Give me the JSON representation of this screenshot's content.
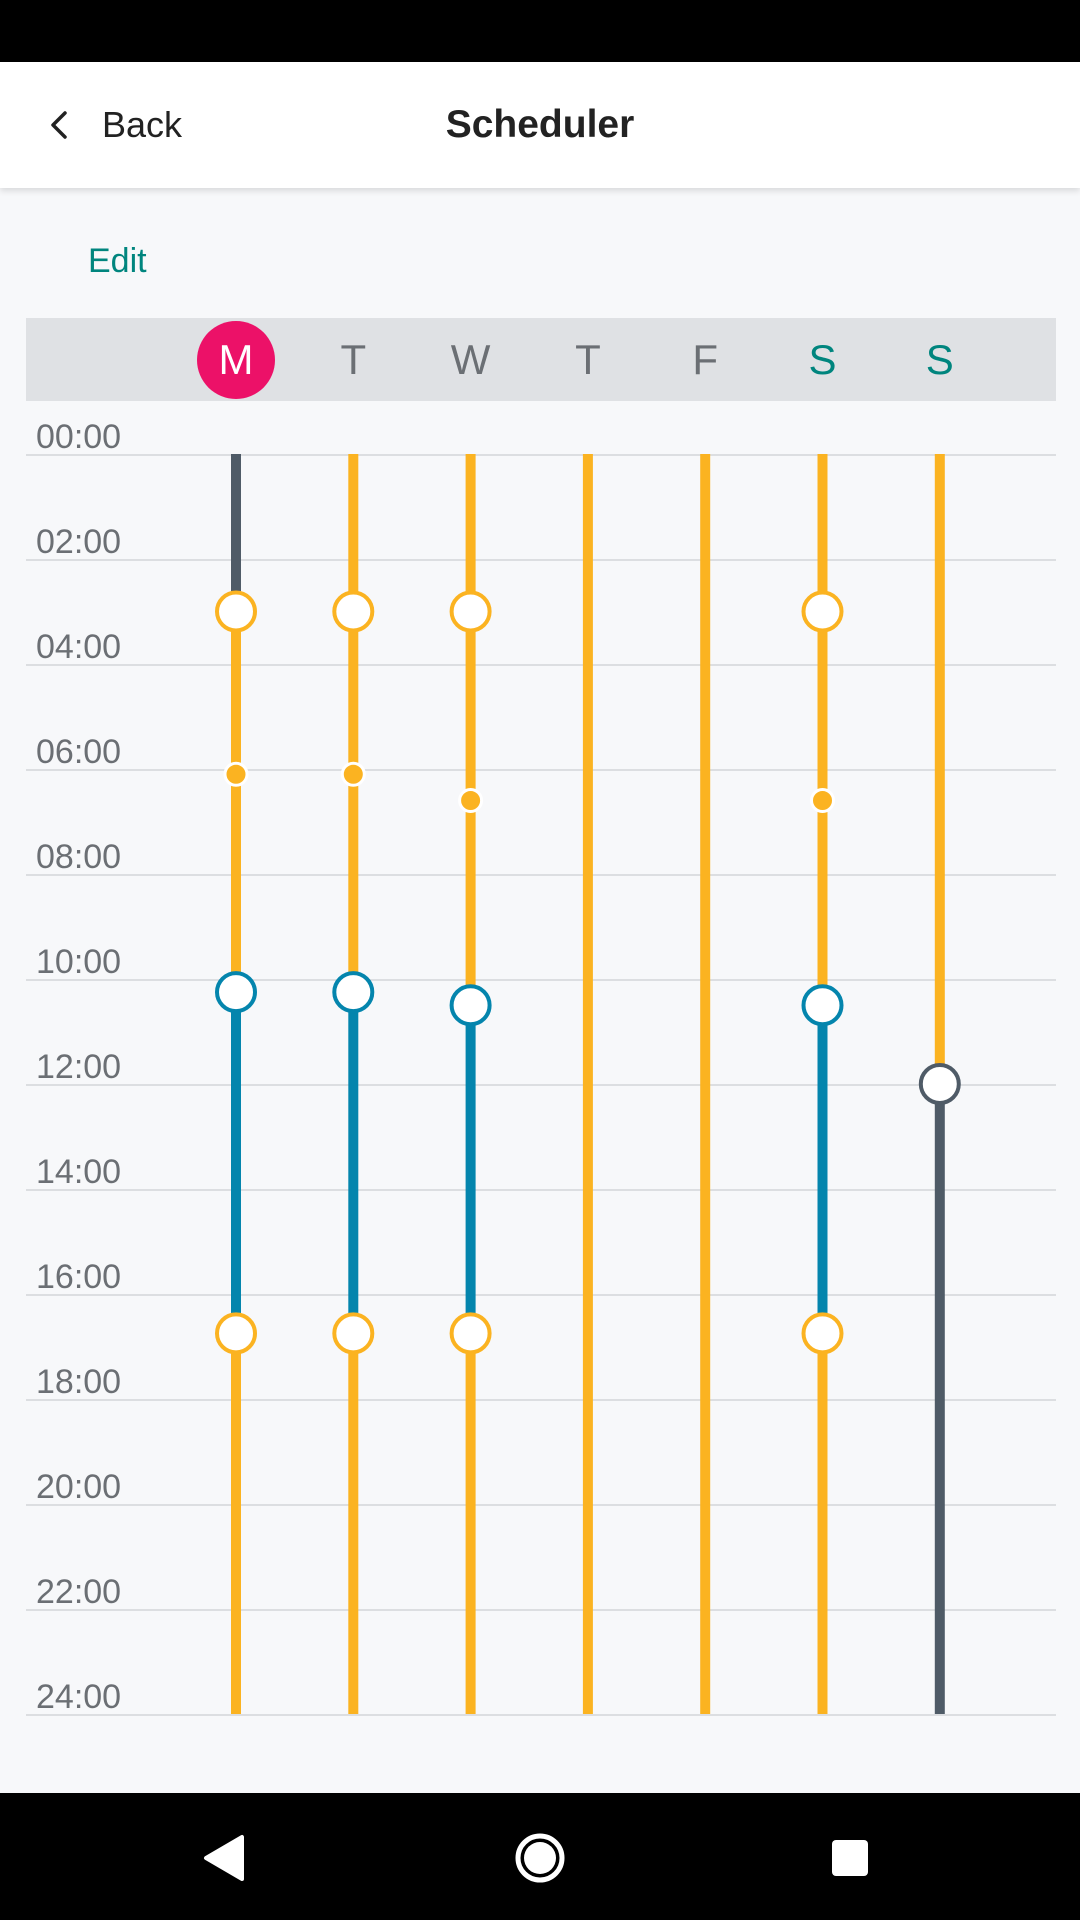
{
  "header": {
    "back_label": "Back",
    "title": "Scheduler"
  },
  "edit_label": "Edit",
  "days": [
    {
      "label": "M",
      "current": true,
      "weekend": false
    },
    {
      "label": "T",
      "current": false,
      "weekend": false
    },
    {
      "label": "W",
      "current": false,
      "weekend": false
    },
    {
      "label": "T",
      "current": false,
      "weekend": false
    },
    {
      "label": "F",
      "current": false,
      "weekend": false
    },
    {
      "label": "S",
      "current": false,
      "weekend": true
    },
    {
      "label": "S",
      "current": false,
      "weekend": true
    }
  ],
  "time_labels": [
    "00:00",
    "02:00",
    "04:00",
    "06:00",
    "08:00",
    "10:00",
    "12:00",
    "14:00",
    "16:00",
    "18:00",
    "20:00",
    "22:00",
    "24:00"
  ],
  "colors": {
    "comfort": "#fbb321",
    "eco": "#0485ad",
    "off": "#4f5b67",
    "accent": "#00857e",
    "today": "#ec1168"
  },
  "schedule": [
    {
      "day": "M",
      "segments": [
        {
          "from": 0,
          "to": 3,
          "mode": "off"
        },
        {
          "from": 3,
          "to": 10.25,
          "mode": "comfort"
        },
        {
          "from": 10.25,
          "to": 16.75,
          "mode": "eco"
        },
        {
          "from": 16.75,
          "to": 24,
          "mode": "comfort"
        }
      ],
      "markers": [
        {
          "at": 3,
          "type": "switch",
          "mode": "comfort"
        },
        {
          "at": 6.1,
          "type": "point",
          "mode": "comfort"
        },
        {
          "at": 10.25,
          "type": "switch",
          "mode": "eco"
        },
        {
          "at": 16.75,
          "type": "switch",
          "mode": "comfort"
        }
      ]
    },
    {
      "day": "T",
      "segments": [
        {
          "from": 0,
          "to": 10.25,
          "mode": "comfort"
        },
        {
          "from": 10.25,
          "to": 16.75,
          "mode": "eco"
        },
        {
          "from": 16.75,
          "to": 24,
          "mode": "comfort"
        }
      ],
      "markers": [
        {
          "at": 3,
          "type": "switch",
          "mode": "comfort"
        },
        {
          "at": 6.1,
          "type": "point",
          "mode": "comfort"
        },
        {
          "at": 10.25,
          "type": "switch",
          "mode": "eco"
        },
        {
          "at": 16.75,
          "type": "switch",
          "mode": "comfort"
        }
      ]
    },
    {
      "day": "W",
      "segments": [
        {
          "from": 0,
          "to": 10.5,
          "mode": "comfort"
        },
        {
          "from": 10.5,
          "to": 16.75,
          "mode": "eco"
        },
        {
          "from": 16.75,
          "to": 24,
          "mode": "comfort"
        }
      ],
      "markers": [
        {
          "at": 3,
          "type": "switch",
          "mode": "comfort"
        },
        {
          "at": 6.6,
          "type": "point",
          "mode": "comfort"
        },
        {
          "at": 10.5,
          "type": "switch",
          "mode": "eco"
        },
        {
          "at": 16.75,
          "type": "switch",
          "mode": "comfort"
        }
      ]
    },
    {
      "day": "T",
      "segments": [
        {
          "from": 0,
          "to": 24,
          "mode": "comfort"
        }
      ],
      "markers": []
    },
    {
      "day": "F",
      "segments": [
        {
          "from": 0,
          "to": 24,
          "mode": "comfort"
        }
      ],
      "markers": []
    },
    {
      "day": "S",
      "segments": [
        {
          "from": 0,
          "to": 10.5,
          "mode": "comfort"
        },
        {
          "from": 10.5,
          "to": 16.75,
          "mode": "eco"
        },
        {
          "from": 16.75,
          "to": 24,
          "mode": "comfort"
        }
      ],
      "markers": [
        {
          "at": 3,
          "type": "switch",
          "mode": "comfort"
        },
        {
          "at": 6.6,
          "type": "point",
          "mode": "comfort"
        },
        {
          "at": 10.5,
          "type": "switch",
          "mode": "eco"
        },
        {
          "at": 16.75,
          "type": "switch",
          "mode": "comfort"
        }
      ]
    },
    {
      "day": "S",
      "segments": [
        {
          "from": 0,
          "to": 12,
          "mode": "comfort"
        },
        {
          "from": 12,
          "to": 24,
          "mode": "off"
        }
      ],
      "markers": [
        {
          "at": 12,
          "type": "switch",
          "mode": "off"
        }
      ]
    }
  ],
  "nav": {
    "back_icon": "triangle-back-icon",
    "home_icon": "circle-home-icon",
    "recents_icon": "square-recents-icon"
  }
}
